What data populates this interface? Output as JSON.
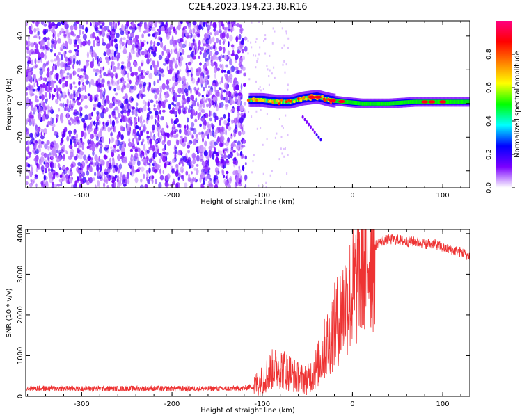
{
  "title": "C2E4.2023.194.23.38.R16",
  "chart_data": [
    {
      "type": "heatmap",
      "xlabel": "Height of straight line (km)",
      "ylabel": "Frequency (Hz)",
      "xlim": [
        -362,
        130
      ],
      "ylim": [
        -50,
        49
      ],
      "xticks": [
        -300,
        -200,
        -100,
        0,
        100
      ],
      "yticks": [
        -40,
        -20,
        0,
        20,
        40
      ],
      "description_free": true,
      "regions": [
        {
          "x_range": [
            -362,
            -118
          ],
          "freq_range": [
            -50,
            49
          ],
          "level": "scattered low-mid amplitude noise"
        },
        {
          "x_range": [
            -118,
            130
          ],
          "freq_center": 0,
          "level": "high amplitude carrier line"
        }
      ],
      "carrier_points": [
        {
          "x": -115,
          "y": 2
        },
        {
          "x": -100,
          "y": 2
        },
        {
          "x": -85,
          "y": 1
        },
        {
          "x": -70,
          "y": 1
        },
        {
          "x": -55,
          "y": 3
        },
        {
          "x": -40,
          "y": 4
        },
        {
          "x": -25,
          "y": 2
        },
        {
          "x": -10,
          "y": 1
        },
        {
          "x": 10,
          "y": 0
        },
        {
          "x": 40,
          "y": 0
        },
        {
          "x": 70,
          "y": 1
        },
        {
          "x": 100,
          "y": 1
        },
        {
          "x": 130,
          "y": 1
        }
      ],
      "colorbar": {
        "label": "Normalized spectral amplitude",
        "range": [
          0,
          1
        ],
        "ticks": [
          "0.0",
          "0.2",
          "0.4",
          "0.6",
          "0.8"
        ],
        "colors": [
          "#ffffff",
          "#7b00ff",
          "#0000ff",
          "#00ffff",
          "#00ff00",
          "#ffff00",
          "#ff8000",
          "#ff0000",
          "#ff0080"
        ]
      }
    },
    {
      "type": "line",
      "xlabel": "Height of straight line (km)",
      "ylabel": "SNR (10 * v/v)",
      "xlim": [
        -362,
        130
      ],
      "ylim": [
        0,
        4100
      ],
      "xticks": [
        -300,
        -200,
        -100,
        0,
        100
      ],
      "yticks": [
        0,
        1000,
        2000,
        3000,
        4000
      ],
      "color": "#ee3333",
      "series": [
        {
          "x": [
            -362,
            -300,
            -250,
            -200,
            -150,
            -120,
            -110,
            -100,
            -90,
            -80,
            -70,
            -60,
            -50,
            -40,
            -30,
            -20,
            -10,
            0,
            10,
            20,
            30,
            40,
            50,
            60,
            70,
            80,
            90,
            100,
            110,
            120,
            130
          ],
          "values": [
            200,
            190,
            190,
            190,
            190,
            200,
            250,
            400,
            650,
            700,
            600,
            450,
            400,
            700,
            1200,
            1700,
            2200,
            2600,
            3100,
            3600,
            3800,
            3850,
            3850,
            3800,
            3800,
            3750,
            3750,
            3650,
            3600,
            3550,
            3450
          ]
        }
      ]
    }
  ]
}
